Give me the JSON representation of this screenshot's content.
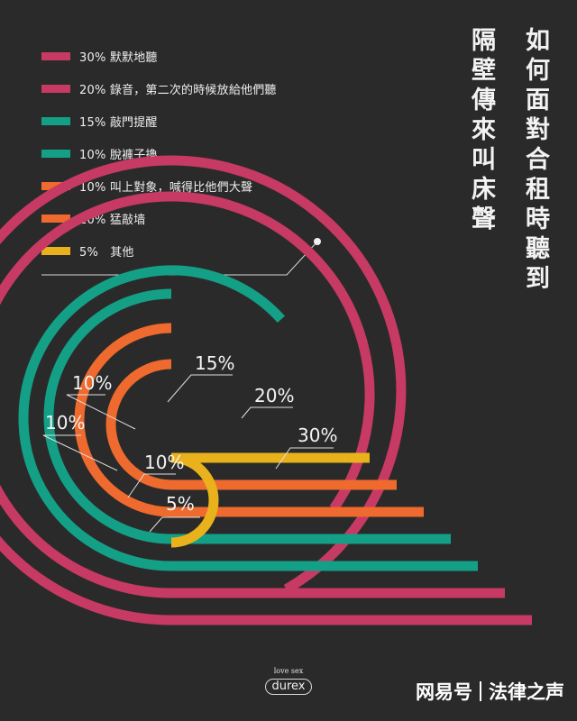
{
  "title": {
    "line1": "如何面對合租時聽到",
    "line2": "隔壁傳來叫床聲"
  },
  "legend": [
    {
      "text": "30% 默默地聽",
      "color": "#c63a64"
    },
    {
      "text": "20% 錄音，第二次的時候放給他們聽",
      "color": "#c63a64"
    },
    {
      "text": "15% 敲門提醒",
      "color": "#14a086"
    },
    {
      "text": "10% 脫褲子擼",
      "color": "#14a086"
    },
    {
      "text": "10% 叫上對象，喊得比他們大聲",
      "color": "#ee6a2e"
    },
    {
      "text": "10% 猛敲墙",
      "color": "#ee6a2e"
    },
    {
      "text": "5%　其他",
      "color": "#e9b21c"
    }
  ],
  "chart_data": {
    "type": "bar",
    "categories": [
      "默默地聽",
      "錄音，第二次的時候放給他們聽",
      "敲門提醒",
      "脫褲子擼",
      "叫上對象，喊得比他們大聲",
      "猛敲墙",
      "其他"
    ],
    "values": [
      30,
      20,
      15,
      10,
      10,
      10,
      5
    ],
    "labels": [
      "30%",
      "20%",
      "15%",
      "10%",
      "10%",
      "10%",
      "5%"
    ],
    "colors": [
      "#c63a64",
      "#c63a64",
      "#14a086",
      "#14a086",
      "#ee6a2e",
      "#ee6a2e",
      "#e9b21c"
    ],
    "unit": "%"
  },
  "brand": {
    "tagline": "love sex",
    "name": "durex"
  },
  "watermark": {
    "part1": "网易号",
    "part2": "法律之声"
  }
}
